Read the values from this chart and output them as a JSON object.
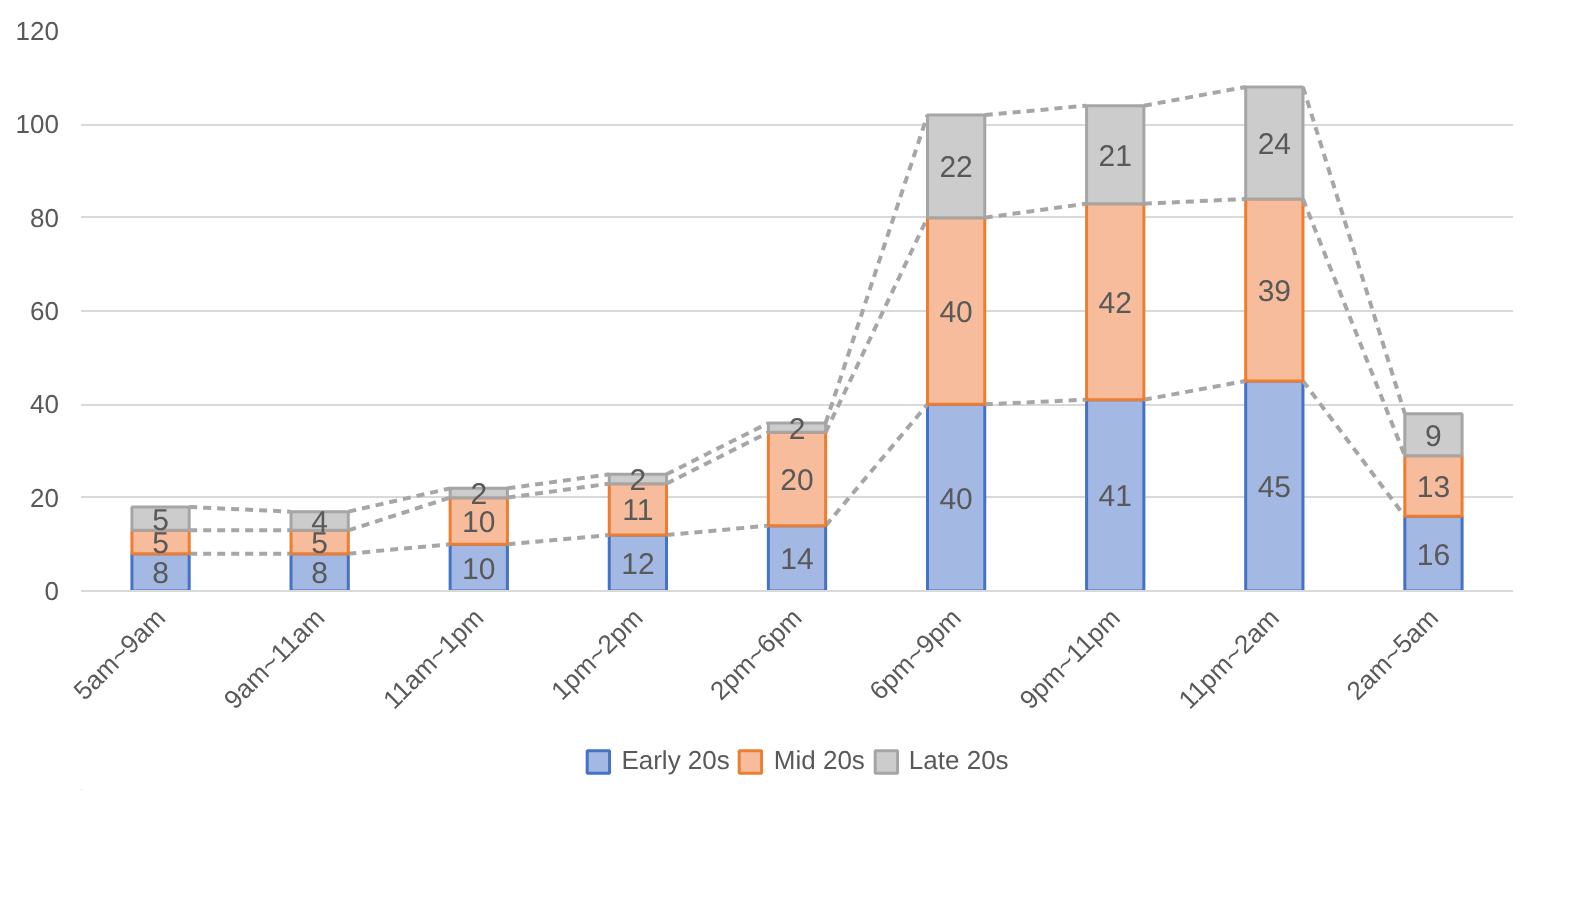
{
  "chart_data": {
    "type": "bar",
    "stacked": true,
    "categories": [
      "5am~9am",
      "9am~11am",
      "11am~1pm",
      "1pm~2pm",
      "2pm~6pm",
      "6pm~9pm",
      "9pm~11pm",
      "11pm~2am",
      "2am~5am"
    ],
    "series": [
      {
        "name": "Early 20s",
        "color": "#a4b8e4",
        "values": [
          8,
          8,
          10,
          12,
          14,
          40,
          41,
          45,
          16
        ]
      },
      {
        "name": "Mid 20s",
        "color": "#f6bc9c",
        "values": [
          5,
          5,
          10,
          11,
          20,
          40,
          42,
          39,
          13
        ]
      },
      {
        "name": "Late 20s",
        "color": "#cccccc",
        "values": [
          5,
          4,
          2,
          2,
          2,
          22,
          21,
          24,
          9
        ]
      }
    ],
    "ylim": [
      0,
      120
    ],
    "yticks": [
      0,
      20,
      40,
      60,
      80,
      100,
      120
    ],
    "grid": "y",
    "legend": "bottom",
    "data_labels": true
  }
}
